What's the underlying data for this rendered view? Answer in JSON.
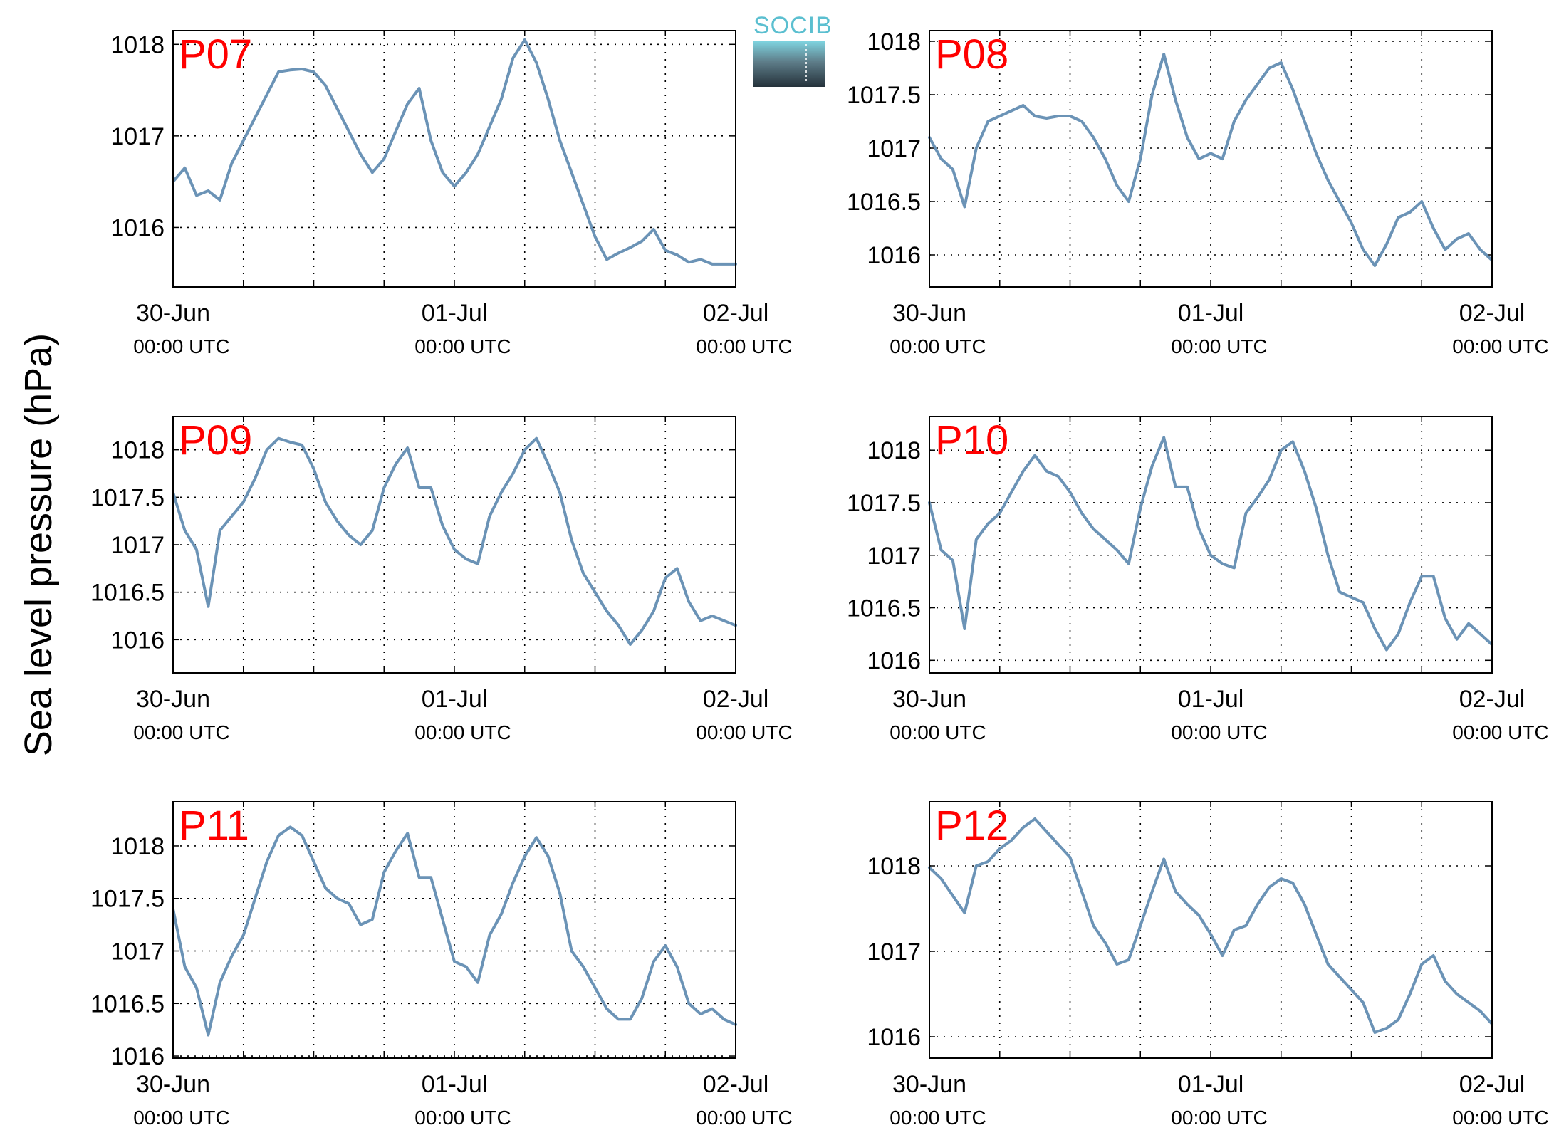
{
  "logo": {
    "text": "SOCIB"
  },
  "ylabel": "Sea level pressure (hPa)",
  "line_color": "#6b93b6",
  "station_label_color": "#ff0000",
  "chart_data": [
    {
      "type": "line",
      "station": "P07",
      "x_ticks": [
        "30-Jun",
        "01-Jul",
        "02-Jul"
      ],
      "x_tick_sublabel": "00:00 UTC",
      "x_range": [
        "30-Jun 00:00",
        "02-Jul 00:00"
      ],
      "ylim": [
        1015.35,
        1018.15
      ],
      "y_ticks": [
        1016,
        1017,
        1018
      ],
      "y_tick_labels": [
        "1016",
        "1017",
        "1018"
      ],
      "grid": true,
      "series": [
        {
          "x_hours": [
            0,
            1,
            2,
            3,
            4,
            5,
            6,
            7,
            8,
            9,
            10,
            11,
            12,
            13,
            14,
            15,
            16,
            17,
            18,
            19,
            20,
            21,
            22,
            23,
            24,
            25,
            26,
            27,
            28,
            29,
            30,
            31,
            32,
            33,
            34,
            35,
            36,
            37,
            38,
            39,
            40,
            41,
            42,
            43,
            44,
            45,
            46,
            47,
            48
          ],
          "values": [
            1016.5,
            1016.65,
            1016.35,
            1016.4,
            1016.3,
            1016.7,
            1016.95,
            1017.2,
            1017.45,
            1017.7,
            1017.72,
            1017.73,
            1017.7,
            1017.55,
            1017.3,
            1017.05,
            1016.8,
            1016.6,
            1016.75,
            1017.05,
            1017.35,
            1017.52,
            1016.95,
            1016.6,
            1016.45,
            1016.6,
            1016.8,
            1017.1,
            1017.4,
            1017.85,
            1018.05,
            1017.8,
            1017.4,
            1016.95,
            1016.6,
            1016.25,
            1015.9,
            1015.65,
            1015.72,
            1015.78,
            1015.85,
            1015.98,
            1015.75,
            1015.7,
            1015.62,
            1015.65,
            1015.6,
            1015.6,
            1015.6
          ]
        }
      ]
    },
    {
      "type": "line",
      "station": "P08",
      "x_ticks": [
        "30-Jun",
        "01-Jul",
        "02-Jul"
      ],
      "x_tick_sublabel": "00:00 UTC",
      "x_range": [
        "30-Jun 00:00",
        "02-Jul 00:00"
      ],
      "ylim": [
        1015.7,
        1018.1
      ],
      "y_ticks": [
        1016,
        1016.5,
        1017,
        1017.5,
        1018
      ],
      "y_tick_labels": [
        "1016",
        "1016.5",
        "1017",
        "1017.5",
        "1018"
      ],
      "grid": true,
      "series": [
        {
          "x_hours": [
            0,
            1,
            2,
            3,
            4,
            5,
            6,
            7,
            8,
            9,
            10,
            11,
            12,
            13,
            14,
            15,
            16,
            17,
            18,
            19,
            20,
            21,
            22,
            23,
            24,
            25,
            26,
            27,
            28,
            29,
            30,
            31,
            32,
            33,
            34,
            35,
            36,
            37,
            38,
            39,
            40,
            41,
            42,
            43,
            44,
            45,
            46,
            47,
            48
          ],
          "values": [
            1017.1,
            1016.9,
            1016.8,
            1016.45,
            1017.0,
            1017.25,
            1017.3,
            1017.35,
            1017.4,
            1017.3,
            1017.28,
            1017.3,
            1017.3,
            1017.25,
            1017.1,
            1016.9,
            1016.65,
            1016.5,
            1016.9,
            1017.5,
            1017.88,
            1017.45,
            1017.1,
            1016.9,
            1016.95,
            1016.9,
            1017.25,
            1017.45,
            1017.6,
            1017.75,
            1017.8,
            1017.55,
            1017.25,
            1016.95,
            1016.7,
            1016.5,
            1016.3,
            1016.05,
            1015.9,
            1016.1,
            1016.35,
            1016.4,
            1016.5,
            1016.25,
            1016.05,
            1016.15,
            1016.2,
            1016.05,
            1015.95
          ]
        }
      ]
    },
    {
      "type": "line",
      "station": "P09",
      "x_ticks": [
        "30-Jun",
        "01-Jul",
        "02-Jul"
      ],
      "x_tick_sublabel": "00:00 UTC",
      "x_range": [
        "30-Jun 00:00",
        "02-Jul 00:00"
      ],
      "ylim": [
        1015.65,
        1018.35
      ],
      "y_ticks": [
        1016,
        1016.5,
        1017,
        1017.5,
        1018
      ],
      "y_tick_labels": [
        "1016",
        "1016.5",
        "1017",
        "1017.5",
        "1018"
      ],
      "grid": true,
      "series": [
        {
          "x_hours": [
            0,
            1,
            2,
            3,
            4,
            5,
            6,
            7,
            8,
            9,
            10,
            11,
            12,
            13,
            14,
            15,
            16,
            17,
            18,
            19,
            20,
            21,
            22,
            23,
            24,
            25,
            26,
            27,
            28,
            29,
            30,
            31,
            32,
            33,
            34,
            35,
            36,
            37,
            38,
            39,
            40,
            41,
            42,
            43,
            44,
            45,
            46,
            47,
            48
          ],
          "values": [
            1017.55,
            1017.15,
            1016.95,
            1016.35,
            1017.15,
            1017.3,
            1017.45,
            1017.7,
            1018.0,
            1018.12,
            1018.08,
            1018.05,
            1017.8,
            1017.45,
            1017.25,
            1017.1,
            1017.0,
            1017.15,
            1017.6,
            1017.85,
            1018.02,
            1017.6,
            1017.6,
            1017.2,
            1016.95,
            1016.85,
            1016.8,
            1017.3,
            1017.55,
            1017.75,
            1018.0,
            1018.12,
            1017.85,
            1017.55,
            1017.05,
            1016.7,
            1016.5,
            1016.3,
            1016.15,
            1015.95,
            1016.1,
            1016.3,
            1016.65,
            1016.75,
            1016.4,
            1016.2,
            1016.25,
            1016.2,
            1016.15
          ]
        }
      ]
    },
    {
      "type": "line",
      "station": "P10",
      "x_ticks": [
        "30-Jun",
        "01-Jul",
        "02-Jul"
      ],
      "x_tick_sublabel": "00:00 UTC",
      "x_range": [
        "30-Jun 00:00",
        "02-Jul 00:00"
      ],
      "ylim": [
        1015.88,
        1018.32
      ],
      "y_ticks": [
        1016,
        1016.5,
        1017,
        1017.5,
        1018
      ],
      "y_tick_labels": [
        "1016",
        "1016.5",
        "1017",
        "1017.5",
        "1018"
      ],
      "grid": true,
      "series": [
        {
          "x_hours": [
            0,
            1,
            2,
            3,
            4,
            5,
            6,
            7,
            8,
            9,
            10,
            11,
            12,
            13,
            14,
            15,
            16,
            17,
            18,
            19,
            20,
            21,
            22,
            23,
            24,
            25,
            26,
            27,
            28,
            29,
            30,
            31,
            32,
            33,
            34,
            35,
            36,
            37,
            38,
            39,
            40,
            41,
            42,
            43,
            44,
            45,
            46,
            47,
            48
          ],
          "values": [
            1017.5,
            1017.05,
            1016.95,
            1016.3,
            1017.15,
            1017.3,
            1017.4,
            1017.6,
            1017.8,
            1017.95,
            1017.8,
            1017.75,
            1017.6,
            1017.4,
            1017.25,
            1017.15,
            1017.05,
            1016.92,
            1017.45,
            1017.85,
            1018.12,
            1017.65,
            1017.65,
            1017.25,
            1017.0,
            1016.92,
            1016.88,
            1017.4,
            1017.55,
            1017.72,
            1018.0,
            1018.08,
            1017.8,
            1017.45,
            1017.0,
            1016.65,
            1016.6,
            1016.55,
            1016.3,
            1016.1,
            1016.25,
            1016.55,
            1016.8,
            1016.8,
            1016.4,
            1016.2,
            1016.35,
            1016.25,
            1016.15
          ]
        }
      ]
    },
    {
      "type": "line",
      "station": "P11",
      "x_ticks": [
        "30-Jun",
        "01-Jul",
        "02-Jul"
      ],
      "x_tick_sublabel": "00:00 UTC",
      "x_range": [
        "30-Jun 00:00",
        "02-Jul 00:00"
      ],
      "ylim": [
        1015.98,
        1018.42
      ],
      "y_ticks": [
        1016,
        1016.5,
        1017,
        1017.5,
        1018
      ],
      "y_tick_labels": [
        "1016",
        "1016.5",
        "1017",
        "1017.5",
        "1018"
      ],
      "grid": true,
      "series": [
        {
          "x_hours": [
            0,
            1,
            2,
            3,
            4,
            5,
            6,
            7,
            8,
            9,
            10,
            11,
            12,
            13,
            14,
            15,
            16,
            17,
            18,
            19,
            20,
            21,
            22,
            23,
            24,
            25,
            26,
            27,
            28,
            29,
            30,
            31,
            32,
            33,
            34,
            35,
            36,
            37,
            38,
            39,
            40,
            41,
            42,
            43,
            44,
            45,
            46,
            47,
            48
          ],
          "values": [
            1017.4,
            1016.85,
            1016.65,
            1016.2,
            1016.7,
            1016.95,
            1017.15,
            1017.5,
            1017.85,
            1018.1,
            1018.18,
            1018.1,
            1017.85,
            1017.6,
            1017.5,
            1017.45,
            1017.25,
            1017.3,
            1017.75,
            1017.95,
            1018.12,
            1017.7,
            1017.7,
            1017.3,
            1016.9,
            1016.85,
            1016.7,
            1017.15,
            1017.35,
            1017.65,
            1017.9,
            1018.08,
            1017.9,
            1017.55,
            1017.0,
            1016.85,
            1016.65,
            1016.45,
            1016.35,
            1016.35,
            1016.55,
            1016.9,
            1017.05,
            1016.85,
            1016.5,
            1016.4,
            1016.45,
            1016.35,
            1016.3
          ]
        }
      ]
    },
    {
      "type": "line",
      "station": "P12",
      "x_ticks": [
        "30-Jun",
        "01-Jul",
        "02-Jul"
      ],
      "x_tick_sublabel": "00:00 UTC",
      "x_range": [
        "30-Jun 00:00",
        "02-Jul 00:00"
      ],
      "ylim": [
        1015.75,
        1018.75
      ],
      "y_ticks": [
        1016,
        1017,
        1018
      ],
      "y_tick_labels": [
        "1016",
        "1017",
        "1018"
      ],
      "grid": true,
      "series": [
        {
          "x_hours": [
            0,
            1,
            2,
            3,
            4,
            5,
            6,
            7,
            8,
            9,
            10,
            11,
            12,
            13,
            14,
            15,
            16,
            17,
            18,
            19,
            20,
            21,
            22,
            23,
            24,
            25,
            26,
            27,
            28,
            29,
            30,
            31,
            32,
            33,
            34,
            35,
            36,
            37,
            38,
            39,
            40,
            41,
            42,
            43,
            44,
            45,
            46,
            47,
            48
          ],
          "values": [
            1017.98,
            1017.85,
            1017.65,
            1017.45,
            1018.0,
            1018.05,
            1018.2,
            1018.3,
            1018.45,
            1018.55,
            1018.4,
            1018.25,
            1018.1,
            1017.7,
            1017.3,
            1017.1,
            1016.85,
            1016.9,
            1017.3,
            1017.7,
            1018.08,
            1017.7,
            1017.55,
            1017.42,
            1017.2,
            1016.95,
            1017.25,
            1017.3,
            1017.55,
            1017.75,
            1017.85,
            1017.8,
            1017.55,
            1017.2,
            1016.85,
            1016.7,
            1016.55,
            1016.4,
            1016.05,
            1016.1,
            1016.2,
            1016.5,
            1016.85,
            1016.95,
            1016.65,
            1016.5,
            1016.4,
            1016.3,
            1016.15
          ]
        }
      ]
    }
  ]
}
